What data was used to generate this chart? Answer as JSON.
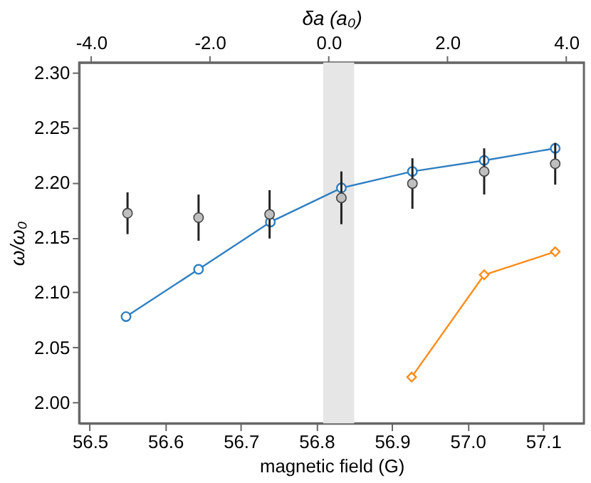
{
  "chart_data": {
    "type": "line",
    "xlabel": "magnetic field (G)",
    "ylabel": "ω/ω₀",
    "x2label": "δa (a₀)",
    "xlim": [
      56.486,
      57.154
    ],
    "xticks": [
      56.5,
      56.6,
      56.7,
      56.8,
      56.9,
      {
        "value": 57.0,
        "label": "57.0"
      },
      57.1
    ],
    "ylim": [
      1.981,
      2.309
    ],
    "yticks": [
      {
        "value": 2.0,
        "label": "2.00"
      },
      2.05,
      {
        "value": 2.1,
        "label": "2.10"
      },
      2.15,
      {
        "value": 2.2,
        "label": "2.20"
      },
      2.25,
      {
        "value": 2.3,
        "label": "2.30"
      }
    ],
    "x2lim": [
      -4.2,
      4.3
    ],
    "x2ticks": [
      {
        "value": -4,
        "label": "-4.0"
      },
      {
        "value": -2,
        "label": "-2.0"
      },
      {
        "value": 0,
        "label": "0.0"
      },
      {
        "value": 2,
        "label": "2.0"
      },
      {
        "value": 4,
        "label": "4.0"
      }
    ],
    "bands": [
      {
        "axis": "x",
        "from": 56.809,
        "to": 56.85,
        "color": "#e6e6e6"
      }
    ],
    "grid": false,
    "series": [
      {
        "marker": "circle",
        "color": "#2f7fc1",
        "x": [
          56.548,
          56.644,
          56.739,
          56.833,
          56.927,
          57.022,
          57.116
        ],
        "values": [
          2.078,
          2.121,
          2.164,
          2.195,
          2.21,
          2.22,
          2.231
        ]
      },
      {
        "marker": "diamond",
        "color": "#ff8c1a",
        "x": [
          56.926,
          57.022,
          57.116
        ],
        "values": [
          2.023,
          2.116,
          2.137
        ]
      },
      {
        "type": "scatter",
        "marker": "circle",
        "color": "#bfbfbf",
        "x": [
          56.55,
          56.644,
          56.738,
          56.833,
          56.927,
          57.022,
          57.116
        ],
        "values": [
          2.172,
          2.168,
          2.171,
          2.186,
          2.199,
          2.21,
          2.217
        ],
        "errors": [
          0.019,
          0.021,
          0.022,
          0.024,
          0.023,
          0.021,
          0.019
        ]
      }
    ]
  }
}
